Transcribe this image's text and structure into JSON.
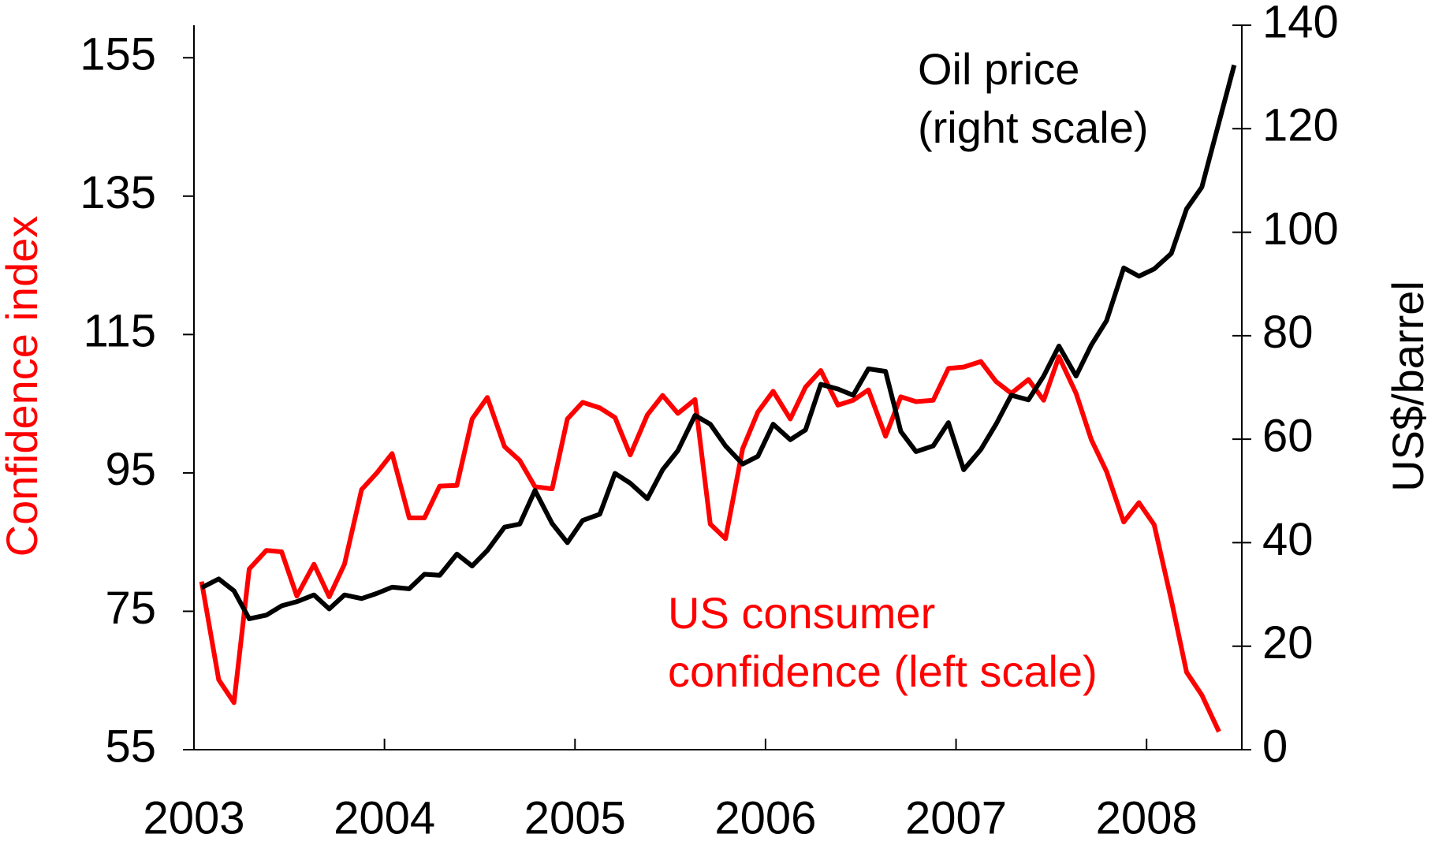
{
  "chart_data": {
    "type": "line",
    "x": [
      2003.04,
      2003.13,
      2003.21,
      2003.29,
      2003.38,
      2003.46,
      2003.54,
      2003.63,
      2003.71,
      2003.79,
      2003.88,
      2003.96,
      2004.04,
      2004.13,
      2004.21,
      2004.29,
      2004.38,
      2004.46,
      2004.54,
      2004.63,
      2004.71,
      2004.79,
      2004.88,
      2004.96,
      2005.04,
      2005.13,
      2005.21,
      2005.29,
      2005.38,
      2005.46,
      2005.54,
      2005.63,
      2005.71,
      2005.79,
      2005.88,
      2005.96,
      2006.04,
      2006.13,
      2006.21,
      2006.29,
      2006.38,
      2006.46,
      2006.54,
      2006.63,
      2006.71,
      2006.79,
      2006.88,
      2006.96,
      2007.04,
      2007.13,
      2007.21,
      2007.29,
      2007.38,
      2007.46,
      2007.54,
      2007.63,
      2007.71,
      2007.79,
      2007.88,
      2007.96,
      2008.04,
      2008.13,
      2008.21,
      2008.29,
      2008.38,
      2008.46
    ],
    "series": [
      {
        "name": "US consumer confidence (left scale)",
        "color": "#ff0000",
        "axis": "y",
        "values": [
          79.3,
          65.1,
          61.8,
          81.1,
          83.8,
          83.6,
          77.2,
          81.8,
          77.1,
          81.8,
          92.6,
          95.0,
          97.8,
          88.5,
          88.5,
          93.1,
          93.2,
          102.8,
          105.9,
          98.8,
          96.8,
          93.0,
          92.7,
          102.8,
          105.2,
          104.4,
          103.0,
          97.6,
          103.4,
          106.2,
          103.6,
          105.6,
          87.6,
          85.5,
          98.5,
          103.8,
          106.8,
          102.8,
          107.4,
          109.8,
          104.8,
          105.5,
          107.0,
          100.3,
          106.0,
          105.3,
          105.5,
          110.1,
          110.3,
          111.1,
          108.2,
          106.5,
          108.5,
          105.5,
          111.8,
          106.5,
          99.8,
          95.2,
          87.9,
          90.7,
          87.5,
          76.6,
          66.2,
          62.9,
          57.6,
          null
        ]
      },
      {
        "name": "Oil price (right scale)",
        "color": "#000000",
        "axis": "y2",
        "values": [
          31.3,
          33.0,
          30.7,
          25.3,
          26.0,
          27.8,
          28.6,
          29.9,
          27.2,
          29.9,
          29.2,
          30.2,
          31.4,
          31.1,
          33.9,
          33.7,
          37.8,
          35.5,
          38.5,
          43.0,
          43.6,
          50.1,
          43.7,
          40.0,
          44.3,
          45.5,
          53.4,
          51.5,
          48.5,
          54.1,
          57.8,
          64.6,
          62.9,
          58.7,
          55.2,
          56.7,
          62.9,
          59.9,
          61.8,
          70.6,
          69.7,
          68.5,
          73.6,
          73.1,
          61.5,
          57.6,
          58.7,
          63.2,
          54.1,
          58.0,
          62.9,
          68.5,
          67.6,
          72.2,
          78.0,
          72.2,
          78.2,
          82.9,
          93.1,
          91.5,
          92.9,
          95.9,
          104.5,
          108.7,
          121.2,
          132.3
        ]
      }
    ],
    "annotations": [
      {
        "lines": [
          "Oil price",
          "(right scale)"
        ],
        "color": "#000000"
      },
      {
        "lines": [
          "US consumer",
          "confidence (left scale)"
        ],
        "color": "#ff0000"
      }
    ],
    "ylabel": "Confidence index",
    "ylabel_color": "#ff0000",
    "y2label": "US$/barrel",
    "xlim": [
      2003,
      2008.5
    ],
    "xticks": [
      2003,
      2004,
      2005,
      2006,
      2007,
      2008
    ],
    "ylim": [
      55,
      159.7
    ],
    "yticks": [
      55,
      75,
      95,
      115,
      135,
      155
    ],
    "y2lim": [
      0,
      140
    ],
    "y2ticks": [
      0,
      20,
      40,
      60,
      80,
      100,
      120,
      140
    ]
  }
}
